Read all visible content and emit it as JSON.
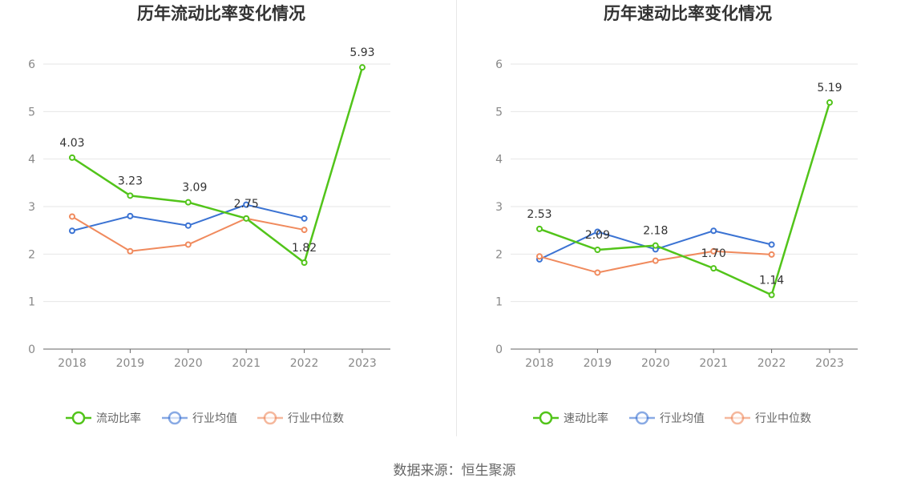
{
  "source_label": "数据来源：恒生聚源",
  "colors": {
    "company": "#52c41a",
    "avg": "#3b73d3",
    "median": "#f08a5d"
  },
  "chart_data": [
    {
      "type": "line",
      "title": "历年流动比率变化情况",
      "x": [
        "2018",
        "2019",
        "2020",
        "2021",
        "2022",
        "2023"
      ],
      "ylim": [
        0,
        6
      ],
      "yticks": [
        0,
        1,
        2,
        3,
        4,
        5,
        6
      ],
      "grid": true,
      "legend_position": "bottom",
      "series": [
        {
          "name": "流动比率",
          "key": "company",
          "values": [
            4.03,
            3.23,
            3.09,
            2.75,
            1.82,
            5.93
          ],
          "labels": [
            "4.03",
            "3.23",
            "3.09",
            "2.75",
            "1.82",
            "5.93"
          ]
        },
        {
          "name": "行业均值",
          "key": "avg",
          "values": [
            2.49,
            2.8,
            2.6,
            3.04,
            2.75,
            null
          ]
        },
        {
          "name": "行业中位数",
          "key": "median",
          "values": [
            2.79,
            2.06,
            2.2,
            2.75,
            2.51,
            null
          ]
        }
      ]
    },
    {
      "type": "line",
      "title": "历年速动比率变化情况",
      "x": [
        "2018",
        "2019",
        "2020",
        "2021",
        "2022",
        "2023"
      ],
      "ylim": [
        0,
        6
      ],
      "yticks": [
        0,
        1,
        2,
        3,
        4,
        5,
        6
      ],
      "grid": true,
      "legend_position": "bottom",
      "series": [
        {
          "name": "速动比率",
          "key": "company",
          "values": [
            2.53,
            2.09,
            2.18,
            1.7,
            1.14,
            5.19
          ],
          "labels": [
            "2.53",
            "2.09",
            "2.18",
            "1.70",
            "1.14",
            "5.19"
          ]
        },
        {
          "name": "行业均值",
          "key": "avg",
          "values": [
            1.89,
            2.47,
            2.1,
            2.49,
            2.2,
            null
          ]
        },
        {
          "name": "行业中位数",
          "key": "median",
          "values": [
            1.95,
            1.61,
            1.86,
            2.06,
            1.99,
            null
          ]
        }
      ]
    }
  ]
}
